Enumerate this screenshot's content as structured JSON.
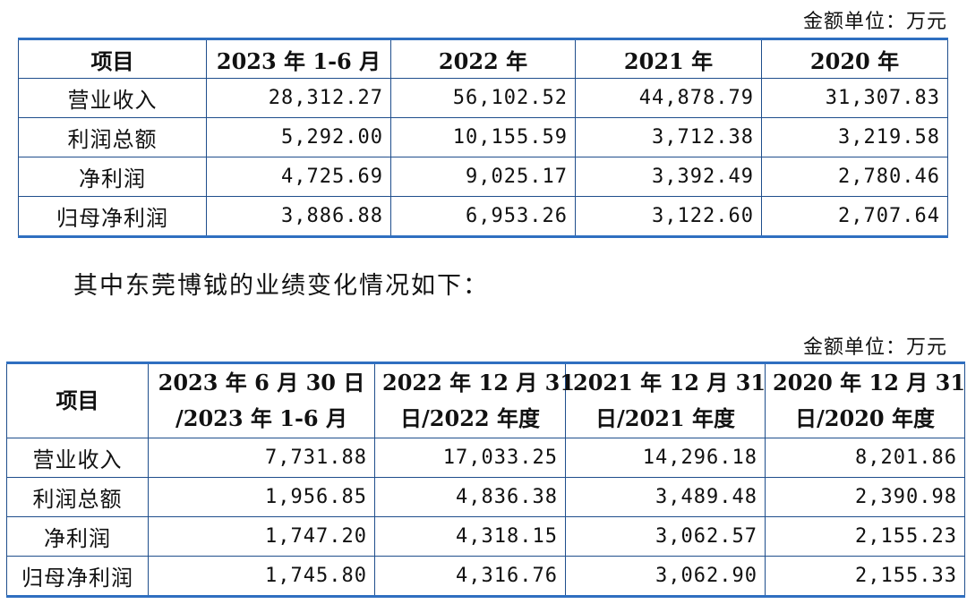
{
  "unit_label_1": "金额单位：万元",
  "table1": {
    "headers": [
      "项目",
      "2023 年 1-6 月",
      "2022 年",
      "2021 年",
      "2020 年"
    ],
    "rows": [
      {
        "label": "营业收入",
        "values": [
          "28,312.27",
          "56,102.52",
          "44,878.79",
          "31,307.83"
        ]
      },
      {
        "label": "利润总额",
        "values": [
          "5,292.00",
          "10,155.59",
          "3,712.38",
          "3,219.58"
        ]
      },
      {
        "label": "净利润",
        "values": [
          "4,725.69",
          "9,025.17",
          "3,392.49",
          "2,780.46"
        ]
      },
      {
        "label": "归母净利润",
        "values": [
          "3,886.88",
          "6,953.26",
          "3,122.60",
          "2,707.64"
        ]
      }
    ]
  },
  "paragraph": "其中东莞博钺的业绩变化情况如下：",
  "unit_label_2": "金额单位：万元",
  "table2": {
    "headers": [
      {
        "line1": "项目",
        "line2": ""
      },
      {
        "line1": "2023 年 6 月 30 日",
        "line2": "/2023 年 1-6 月"
      },
      {
        "line1": "2022 年 12 月 31",
        "line2": "日/2022 年度"
      },
      {
        "line1": "2021 年 12 月 31",
        "line2": "日/2021 年度"
      },
      {
        "line1": "2020 年 12 月 31",
        "line2": "日/2020 年度"
      }
    ],
    "rows": [
      {
        "label": "营业收入",
        "values": [
          "7,731.88",
          "17,033.25",
          "14,296.18",
          "8,201.86"
        ]
      },
      {
        "label": "利润总额",
        "values": [
          "1,956.85",
          "4,836.38",
          "3,489.48",
          "2,390.98"
        ]
      },
      {
        "label": "净利润",
        "values": [
          "1,747.20",
          "4,318.15",
          "3,062.57",
          "2,155.23"
        ]
      },
      {
        "label": "归母净利润",
        "values": [
          "1,745.80",
          "4,316.76",
          "3,062.90",
          "2,155.33"
        ]
      }
    ]
  }
}
